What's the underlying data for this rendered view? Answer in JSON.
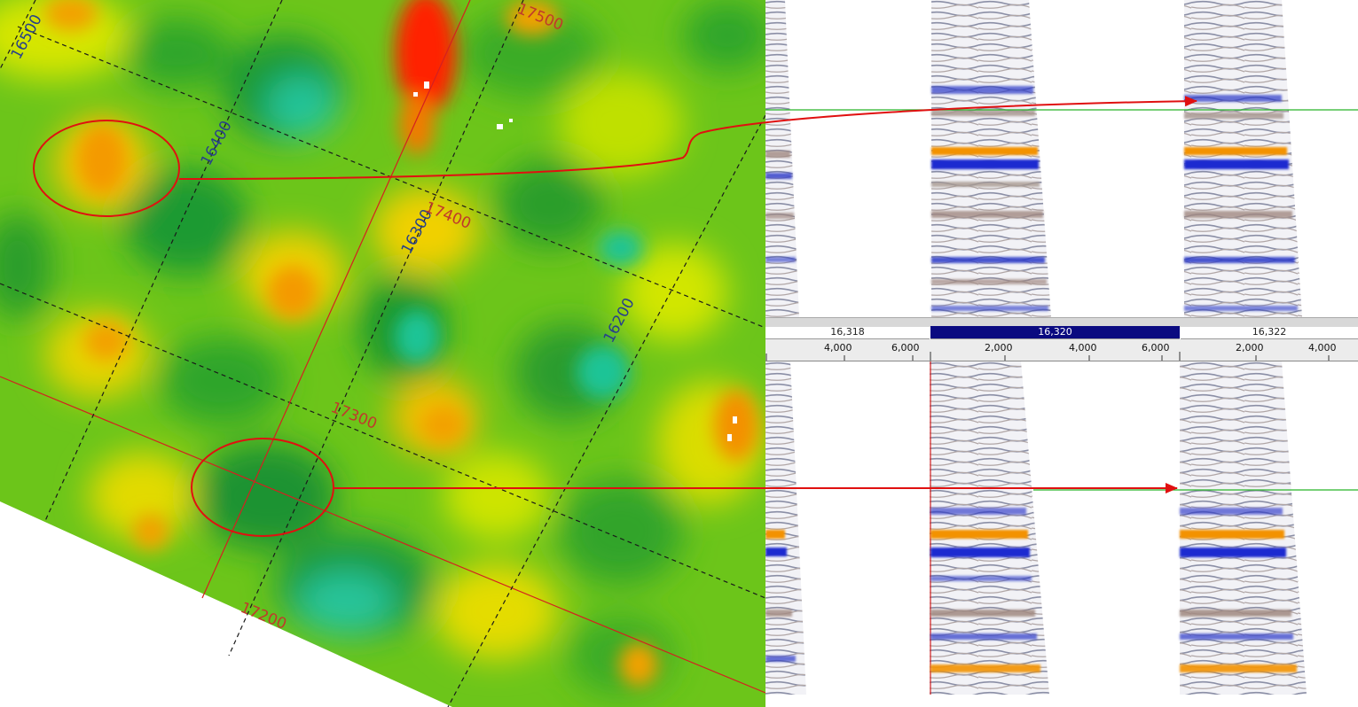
{
  "map": {
    "inline_labels": [
      "16500",
      "16400",
      "16300",
      "16200"
    ],
    "crossline_labels": [
      "17500",
      "17400",
      "17300",
      "17200"
    ],
    "grid_color_dashed": "#1a1a1a",
    "grid_color_selected": "#d42020",
    "inline_label_color": "#27408b",
    "crossline_label_color": "#c0392b",
    "colors": {
      "low": "#1fc98e",
      "mid_green": "#1e9e2a",
      "green": "#5cc21b",
      "yellow": "#e8ee00",
      "orange": "#f4a300",
      "high": "#ff1a00"
    }
  },
  "seismic": {
    "panel_labels": [
      "16,318",
      "16,320",
      "16,322"
    ],
    "selected_panel": "16,320",
    "axis_ticks": [
      [
        "4,000",
        "6,000"
      ],
      [
        "2,000",
        "4,000",
        "6,000"
      ],
      [
        "2,000",
        "4,000"
      ]
    ],
    "colors": {
      "trough": "#1a2ad0",
      "peak": "#f39200",
      "neutral": "#a89890",
      "horizon": "#28b428"
    }
  },
  "annotations": {
    "arrow_color": "#e01010",
    "horizon_color": "#28b428"
  }
}
